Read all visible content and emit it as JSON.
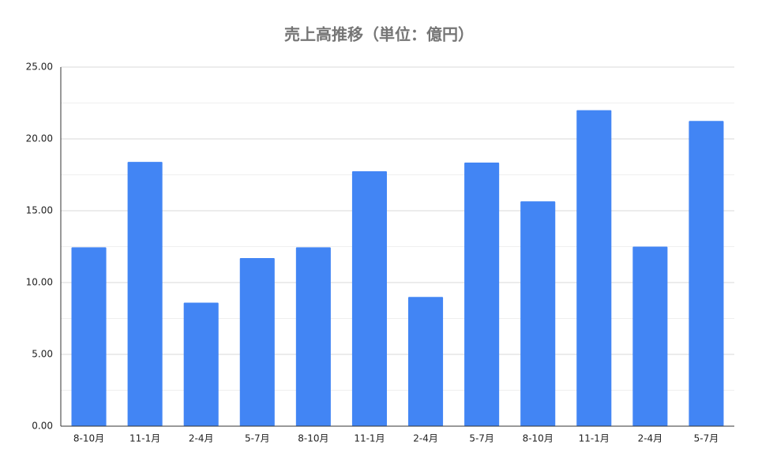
{
  "chart_data": {
    "type": "bar",
    "title": "売上高推移（単位：億円）",
    "categories": [
      "8-10月",
      "11-1月",
      "2-4月",
      "5-7月",
      "8-10月",
      "11-1月",
      "2-4月",
      "5-7月",
      "8-10月",
      "11-1月",
      "2-4月",
      "5-7月"
    ],
    "values": [
      12.45,
      18.4,
      8.6,
      11.7,
      12.45,
      17.75,
      9.0,
      18.35,
      15.65,
      22.0,
      12.5,
      21.25
    ],
    "color": "#4285f4",
    "ylim": [
      0,
      25
    ],
    "yticks": [
      {
        "value": 0,
        "label": "0.00"
      },
      {
        "value": 5,
        "label": "5.00"
      },
      {
        "value": 10,
        "label": "10.00"
      },
      {
        "value": 15,
        "label": "15.00"
      },
      {
        "value": 20,
        "label": "20.00"
      },
      {
        "value": 25,
        "label": "25.00"
      }
    ],
    "minor_yticks": [
      2.5,
      7.5,
      12.5,
      17.5,
      22.5
    ],
    "grid": true
  }
}
